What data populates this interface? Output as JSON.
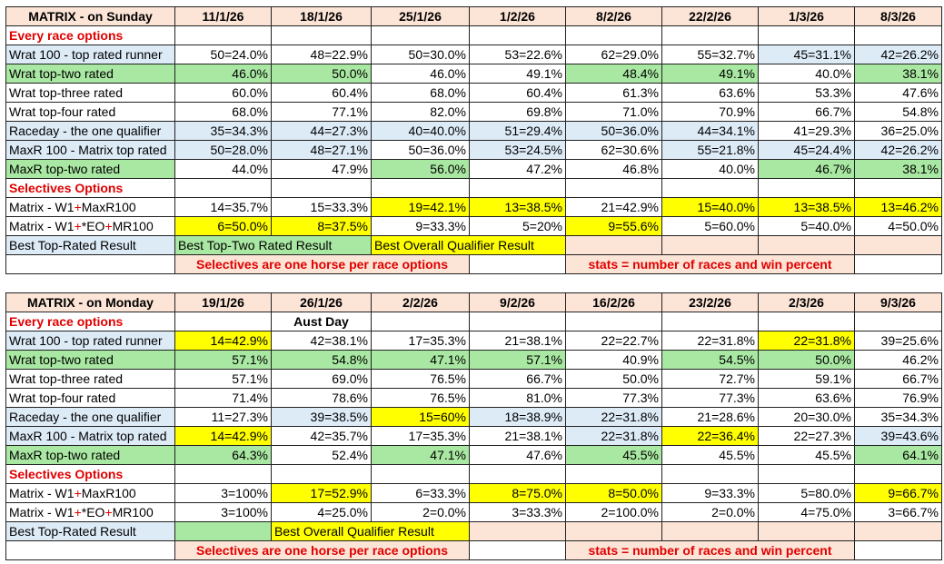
{
  "tables": [
    {
      "title": "MATRIX - on Sunday",
      "dates": [
        "11/1/26",
        "18/1/26",
        "25/1/26",
        "1/2/26",
        "8/2/26",
        "22/2/26",
        "1/3/26",
        "8/3/26"
      ],
      "section1": "Every race options",
      "rows": [
        {
          "label": "Wrat 100 - top rated runner",
          "values": [
            "50=24.0%",
            "48=22.9%",
            "50=30.0%",
            "53=22.6%",
            "62=29.0%",
            "55=32.7%",
            "45=31.1%",
            "42=26.2%"
          ]
        },
        {
          "label": "Wrat top-two rated",
          "values": [
            "46.0%",
            "50.0%",
            "46.0%",
            "49.1%",
            "48.4%",
            "49.1%",
            "40.0%",
            "38.1%"
          ]
        },
        {
          "label": "Wrat top-three rated",
          "values": [
            "60.0%",
            "60.4%",
            "68.0%",
            "60.4%",
            "61.3%",
            "63.6%",
            "53.3%",
            "47.6%"
          ]
        },
        {
          "label": "Wrat top-four rated",
          "values": [
            "68.0%",
            "77.1%",
            "82.0%",
            "69.8%",
            "71.0%",
            "70.9%",
            "66.7%",
            "54.8%"
          ]
        },
        {
          "label": "Raceday - the one qualifier",
          "values": [
            "35=34.3%",
            "44=27.3%",
            "40=40.0%",
            "51=29.4%",
            "50=36.0%",
            "44=34.1%",
            "41=29.3%",
            "36=25.0%"
          ]
        },
        {
          "label": "MaxR 100 - Matrix top rated",
          "values": [
            "50=28.0%",
            "48=27.1%",
            "50=36.0%",
            "53=24.5%",
            "62=30.6%",
            "55=21.8%",
            "45=24.4%",
            "42=26.2%"
          ]
        },
        {
          "label": "MaxR top-two rated",
          "values": [
            "44.0%",
            "47.9%",
            "56.0%",
            "47.2%",
            "46.8%",
            "40.0%",
            "46.7%",
            "38.1%"
          ]
        }
      ],
      "section2": "Selectives Options",
      "selective_rows": [
        {
          "label": "Matrix - W1+MaxR100",
          "values": [
            "14=35.7%",
            "15=33.3%",
            "19=42.1%",
            "13=38.5%",
            "21=42.9%",
            "15=40.0%",
            "13=38.5%",
            "13=46.2%"
          ]
        },
        {
          "label": "Matrix - W1+*EO+MR100",
          "values": [
            "6=50.0%",
            "8=37.5%",
            "9=33.3%",
            "5=20%",
            "9=55.6%",
            "5=60.0%",
            "5=40.0%",
            "4=50.0%"
          ]
        }
      ],
      "best_label": "Best Top-Rated Result",
      "best_two": "Best Top-Two Rated Result",
      "best_overall": "Best Overall Qualifier Result",
      "note_left": "Selectives are one horse per race options",
      "note_right": "stats = number of races and win percent"
    },
    {
      "title": "MATRIX - on Monday",
      "dates": [
        "19/1/26",
        "26/1/26",
        "2/2/26",
        "9/2/26",
        "16/2/26",
        "23/2/26",
        "2/3/26",
        "9/3/26"
      ],
      "section1": "Every race options",
      "aust_day": "Aust Day",
      "rows": [
        {
          "label": "Wrat 100 - top rated runner",
          "values": [
            "14=42.9%",
            "42=38.1%",
            "17=35.3%",
            "21=38.1%",
            "22=22.7%",
            "22=31.8%",
            "22=31.8%",
            "39=25.6%"
          ]
        },
        {
          "label": "Wrat top-two rated",
          "values": [
            "57.1%",
            "54.8%",
            "47.1%",
            "57.1%",
            "40.9%",
            "54.5%",
            "50.0%",
            "46.2%"
          ]
        },
        {
          "label": "Wrat top-three rated",
          "values": [
            "57.1%",
            "69.0%",
            "76.5%",
            "66.7%",
            "50.0%",
            "72.7%",
            "59.1%",
            "66.7%"
          ]
        },
        {
          "label": "Wrat top-four rated",
          "values": [
            "71.4%",
            "78.6%",
            "76.5%",
            "81.0%",
            "77.3%",
            "77.3%",
            "63.6%",
            "76.9%"
          ]
        },
        {
          "label": "Raceday - the one qualifier",
          "values": [
            "11=27.3%",
            "39=38.5%",
            "15=60%",
            "18=38.9%",
            "22=31.8%",
            "21=28.6%",
            "20=30.0%",
            "35=34.3%"
          ]
        },
        {
          "label": "MaxR 100 - Matrix top rated",
          "values": [
            "14=42.9%",
            "42=35.7%",
            "17=35.3%",
            "21=38.1%",
            "22=31.8%",
            "22=36.4%",
            "22=27.3%",
            "39=43.6%"
          ]
        },
        {
          "label": "MaxR top-two rated",
          "values": [
            "64.3%",
            "52.4%",
            "47.1%",
            "47.6%",
            "45.5%",
            "45.5%",
            "45.5%",
            "64.1%"
          ]
        }
      ],
      "section2": "Selectives Options",
      "selective_rows": [
        {
          "label": "Matrix - W1+MaxR100",
          "values": [
            "3=100%",
            "17=52.9%",
            "6=33.3%",
            "8=75.0%",
            "8=50.0%",
            "9=33.3%",
            "5=80.0%",
            "9=66.7%"
          ]
        },
        {
          "label": "Matrix - W1+*EO+MR100",
          "values": [
            "3=100%",
            "4=25.0%",
            "2=0.0%",
            "3=33.3%",
            "2=100.0%",
            "2=0.0%",
            "4=75.0%",
            "3=66.7%"
          ]
        }
      ],
      "best_label": "Best Top-Rated Result",
      "best_overall": "Best Overall Qualifier Result",
      "note_left": "Selectives are one horse per race options",
      "note_right": "stats = number of races and win percent"
    }
  ]
}
